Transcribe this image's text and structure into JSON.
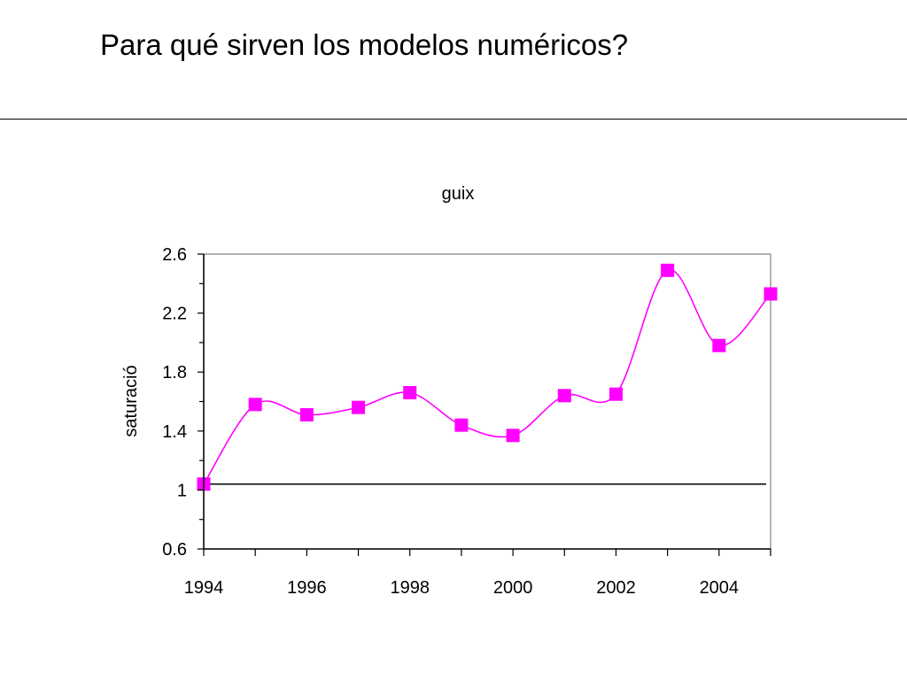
{
  "slide": {
    "title": "Para qué sirven los modelos numéricos?"
  },
  "chart_data": {
    "type": "line",
    "title": "guix",
    "xlabel": "",
    "ylabel": "saturació",
    "x": [
      1994,
      1995,
      1996,
      1997,
      1998,
      1999,
      2000,
      2001,
      2002,
      2003,
      2004,
      2005
    ],
    "series": [
      {
        "values": [
          1.04,
          1.58,
          1.51,
          1.56,
          1.66,
          1.44,
          1.37,
          1.64,
          1.65,
          2.49,
          1.98,
          2.33
        ],
        "color": "#ff00ff",
        "marker": "square",
        "smooth": true
      }
    ],
    "reference_line": {
      "y": 1.04,
      "color": "#000000"
    },
    "xlim": [
      1994,
      2005
    ],
    "ylim": [
      0.6,
      2.6
    ],
    "y_ticks": [
      "0.6",
      "1",
      "1.4",
      "1.8",
      "2.2",
      "2.6"
    ],
    "x_ticks": [
      "1994",
      "1996",
      "1998",
      "2000",
      "2002",
      "2004"
    ],
    "grid": false,
    "legend": "none"
  }
}
